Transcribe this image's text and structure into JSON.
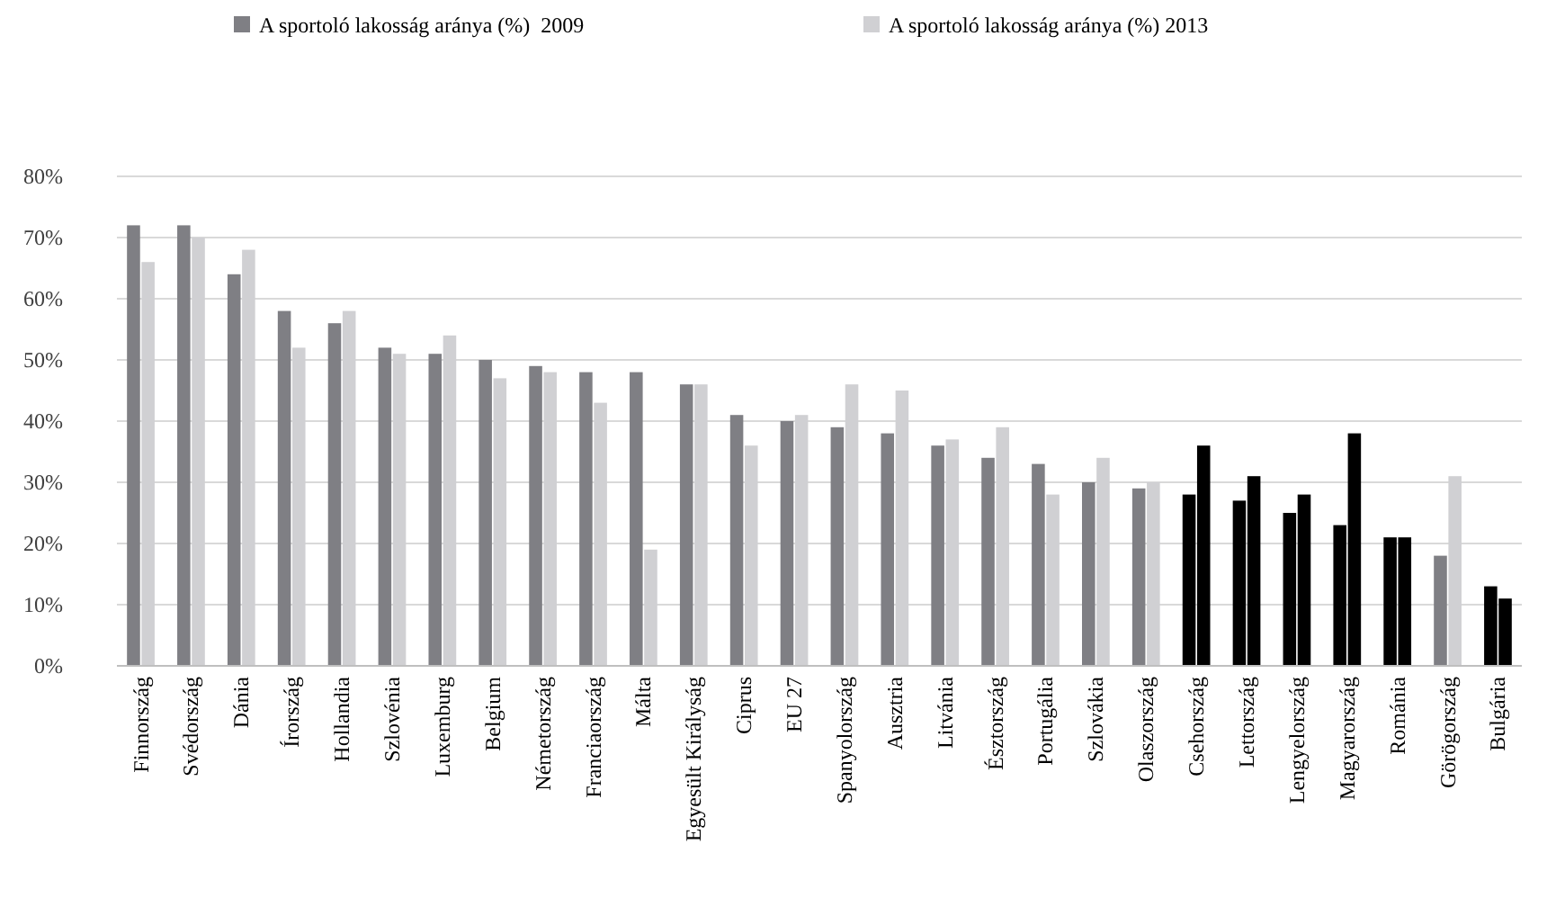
{
  "chart_data": {
    "type": "bar",
    "categories": [
      "Finnország",
      "Svédország",
      "Dánia",
      "Írország",
      "Hollandia",
      "Szlovénia",
      "Luxemburg",
      "Belgium",
      "Németország",
      "Franciaország",
      "Málta",
      "Egyesült Királyság",
      "Ciprus",
      "EU 27",
      "Spanyolország",
      "Ausztria",
      "Litvánia",
      "Észtország",
      "Portugália",
      "Szlovákia",
      "Olaszország",
      "Csehország",
      "Lettország",
      "Lengyelország",
      "Magyarország",
      "Románia",
      "Görögország",
      "Bulgária"
    ],
    "series": [
      {
        "name": "A sportoló lakosság aránya (%)  2009",
        "color": "#7f7f84",
        "colors": [
          "#7f7f84",
          "#7f7f84",
          "#7f7f84",
          "#7f7f84",
          "#7f7f84",
          "#7f7f84",
          "#7f7f84",
          "#7f7f84",
          "#7f7f84",
          "#7f7f84",
          "#7f7f84",
          "#7f7f84",
          "#7f7f84",
          "#7f7f84",
          "#7f7f84",
          "#7f7f84",
          "#7f7f84",
          "#7f7f84",
          "#7f7f84",
          "#7f7f84",
          "#7f7f84",
          "#000000",
          "#000000",
          "#000000",
          "#000000",
          "#000000",
          "#7f7f84",
          "#000000"
        ],
        "values": [
          72,
          72,
          64,
          58,
          56,
          52,
          51,
          50,
          49,
          48,
          48,
          46,
          41,
          40,
          39,
          38,
          36,
          34,
          33,
          30,
          29,
          28,
          27,
          25,
          23,
          21,
          18,
          13
        ]
      },
      {
        "name": "A sportoló lakosság aránya (%) 2013",
        "color": "#d0d0d3",
        "colors": [
          "#d0d0d3",
          "#d0d0d3",
          "#d0d0d3",
          "#d0d0d3",
          "#d0d0d3",
          "#d0d0d3",
          "#d0d0d3",
          "#d0d0d3",
          "#d0d0d3",
          "#d0d0d3",
          "#d0d0d3",
          "#d0d0d3",
          "#d0d0d3",
          "#d0d0d3",
          "#d0d0d3",
          "#d0d0d3",
          "#d0d0d3",
          "#d0d0d3",
          "#d0d0d3",
          "#d0d0d3",
          "#d0d0d3",
          "#000000",
          "#000000",
          "#000000",
          "#000000",
          "#000000",
          "#d0d0d3",
          "#000000"
        ],
        "values": [
          66,
          70,
          68,
          52,
          58,
          51,
          54,
          47,
          48,
          43,
          19,
          46,
          36,
          41,
          46,
          45,
          37,
          39,
          28,
          34,
          30,
          36,
          31,
          28,
          38,
          21,
          31,
          11
        ]
      }
    ],
    "ylim": [
      0,
      80
    ],
    "yticks": [
      {
        "value": 0,
        "label": "0%"
      },
      {
        "value": 10,
        "label": "10%"
      },
      {
        "value": 20,
        "label": "20%"
      },
      {
        "value": 30,
        "label": "30%"
      },
      {
        "value": 40,
        "label": "40%"
      },
      {
        "value": 50,
        "label": "50%"
      },
      {
        "value": 60,
        "label": "60%"
      },
      {
        "value": 70,
        "label": "70%"
      },
      {
        "value": 80,
        "label": "80%"
      }
    ],
    "grid": "y",
    "legend": "top"
  }
}
